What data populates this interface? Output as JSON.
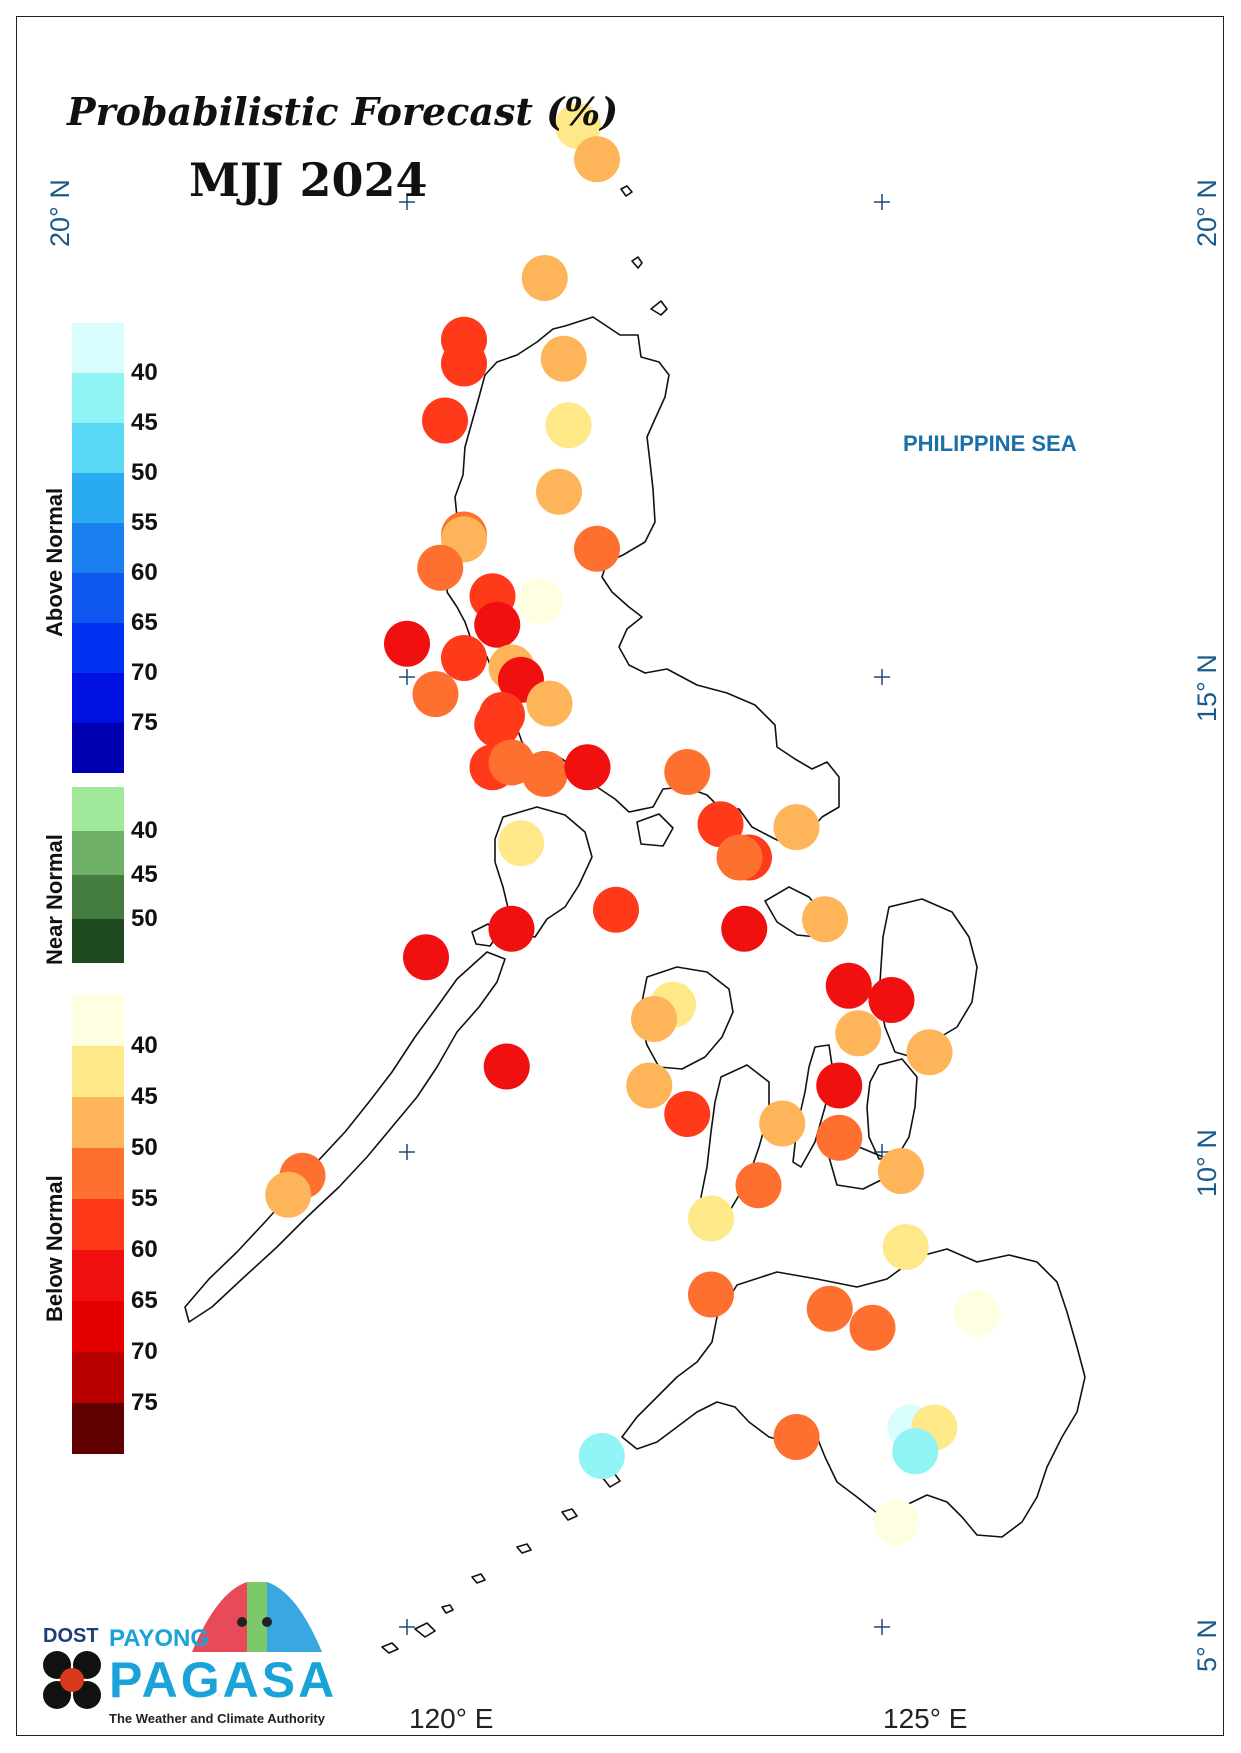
{
  "title": "Probabilistic Forecast (%)",
  "period": "MJJ 2024",
  "sea_label": "PHILIPPINE SEA",
  "latitude_labels": [
    "20° N",
    "15° N",
    "10° N",
    "5° N"
  ],
  "longitude_labels": [
    "120° E",
    "125° E"
  ],
  "legend": {
    "above_normal": {
      "label": "Above Normal",
      "colors": [
        "#d9fcfc",
        "#90f4f4",
        "#58d8f4",
        "#2aaaf0",
        "#1a80f0",
        "#0e58f0",
        "#0030f0",
        "#0010e0",
        "#0000b0"
      ],
      "ticks": [
        "40",
        "45",
        "50",
        "55",
        "60",
        "65",
        "70",
        "75"
      ]
    },
    "near_normal": {
      "label": "Near Normal",
      "colors": [
        "#a0e89a",
        "#6eb068",
        "#447c40",
        "#1f4a20"
      ],
      "ticks": [
        "40",
        "45",
        "50"
      ]
    },
    "below_normal": {
      "label": "Below Normal",
      "colors": [
        "#fefee0",
        "#fee888",
        "#feb458",
        "#fe7030",
        "#fe3a1a",
        "#f01010",
        "#e40000",
        "#b80000",
        "#600000"
      ],
      "ticks": [
        "40",
        "45",
        "50",
        "55",
        "60",
        "65",
        "70",
        "75"
      ]
    }
  },
  "logo": {
    "dost": "DOST",
    "payong": "PAYONG",
    "pagasa": "PAGASA",
    "tagline": "The Weather and Climate Authority"
  },
  "stations": [
    {
      "lon": 121.8,
      "lat": 20.8,
      "color": "#fee888"
    },
    {
      "lon": 122.0,
      "lat": 20.45,
      "color": "#feb458"
    },
    {
      "lon": 121.45,
      "lat": 19.2,
      "color": "#feb458"
    },
    {
      "lon": 120.6,
      "lat": 18.55,
      "color": "#fe3a1a"
    },
    {
      "lon": 120.6,
      "lat": 18.3,
      "color": "#fe3a1a"
    },
    {
      "lon": 121.65,
      "lat": 18.35,
      "color": "#feb458"
    },
    {
      "lon": 120.4,
      "lat": 17.7,
      "color": "#fe3a1a"
    },
    {
      "lon": 121.7,
      "lat": 17.65,
      "color": "#fee888"
    },
    {
      "lon": 121.6,
      "lat": 16.95,
      "color": "#feb458"
    },
    {
      "lon": 120.6,
      "lat": 16.5,
      "color": "#fe7030"
    },
    {
      "lon": 120.6,
      "lat": 16.45,
      "color": "#feb458"
    },
    {
      "lon": 122.0,
      "lat": 16.35,
      "color": "#fe7030"
    },
    {
      "lon": 120.35,
      "lat": 16.15,
      "color": "#fe7030"
    },
    {
      "lon": 120.9,
      "lat": 15.85,
      "color": "#fe3a1a"
    },
    {
      "lon": 121.4,
      "lat": 15.8,
      "color": "#fefee0"
    },
    {
      "lon": 120.95,
      "lat": 15.55,
      "color": "#f01010"
    },
    {
      "lon": 120.0,
      "lat": 15.35,
      "color": "#f01010"
    },
    {
      "lon": 120.6,
      "lat": 15.2,
      "color": "#fe3a1a"
    },
    {
      "lon": 121.1,
      "lat": 15.1,
      "color": "#feb458"
    },
    {
      "lon": 121.2,
      "lat": 14.97,
      "color": "#f01010"
    },
    {
      "lon": 120.3,
      "lat": 14.82,
      "color": "#fe7030"
    },
    {
      "lon": 121.5,
      "lat": 14.72,
      "color": "#feb458"
    },
    {
      "lon": 121.0,
      "lat": 14.6,
      "color": "#fe3a1a"
    },
    {
      "lon": 120.95,
      "lat": 14.5,
      "color": "#fe3a1a"
    },
    {
      "lon": 120.9,
      "lat": 14.05,
      "color": "#fe3a1a"
    },
    {
      "lon": 121.1,
      "lat": 14.1,
      "color": "#fe7030"
    },
    {
      "lon": 121.45,
      "lat": 13.98,
      "color": "#fe7030"
    },
    {
      "lon": 121.9,
      "lat": 14.05,
      "color": "#f01010"
    },
    {
      "lon": 122.95,
      "lat": 14.0,
      "color": "#fe7030"
    },
    {
      "lon": 123.3,
      "lat": 13.45,
      "color": "#fe3a1a"
    },
    {
      "lon": 124.1,
      "lat": 13.42,
      "color": "#feb458"
    },
    {
      "lon": 123.6,
      "lat": 13.1,
      "color": "#fe3a1a"
    },
    {
      "lon": 123.5,
      "lat": 13.1,
      "color": "#fe7030"
    },
    {
      "lon": 121.2,
      "lat": 13.25,
      "color": "#fee888"
    },
    {
      "lon": 122.2,
      "lat": 12.55,
      "color": "#fe3a1a"
    },
    {
      "lon": 124.4,
      "lat": 12.45,
      "color": "#feb458"
    },
    {
      "lon": 121.1,
      "lat": 12.35,
      "color": "#f01010"
    },
    {
      "lon": 123.55,
      "lat": 12.35,
      "color": "#f01010"
    },
    {
      "lon": 120.2,
      "lat": 12.05,
      "color": "#f01010"
    },
    {
      "lon": 124.65,
      "lat": 11.75,
      "color": "#f01010"
    },
    {
      "lon": 125.1,
      "lat": 11.6,
      "color": "#f01010"
    },
    {
      "lon": 122.8,
      "lat": 11.55,
      "color": "#fee888"
    },
    {
      "lon": 122.6,
      "lat": 11.4,
      "color": "#feb458"
    },
    {
      "lon": 124.75,
      "lat": 11.25,
      "color": "#feb458"
    },
    {
      "lon": 125.5,
      "lat": 11.05,
      "color": "#feb458"
    },
    {
      "lon": 121.05,
      "lat": 10.9,
      "color": "#f01010"
    },
    {
      "lon": 122.55,
      "lat": 10.7,
      "color": "#feb458"
    },
    {
      "lon": 124.55,
      "lat": 10.7,
      "color": "#f01010"
    },
    {
      "lon": 122.95,
      "lat": 10.4,
      "color": "#fe3a1a"
    },
    {
      "lon": 123.95,
      "lat": 10.3,
      "color": "#feb458"
    },
    {
      "lon": 124.55,
      "lat": 10.15,
      "color": "#fe7030"
    },
    {
      "lon": 125.2,
      "lat": 9.8,
      "color": "#feb458"
    },
    {
      "lon": 118.9,
      "lat": 9.75,
      "color": "#fe7030"
    },
    {
      "lon": 118.75,
      "lat": 9.55,
      "color": "#feb458"
    },
    {
      "lon": 123.7,
      "lat": 9.65,
      "color": "#fe7030"
    },
    {
      "lon": 123.2,
      "lat": 9.3,
      "color": "#fee888"
    },
    {
      "lon": 125.25,
      "lat": 9.0,
      "color": "#fee888"
    },
    {
      "lon": 123.2,
      "lat": 8.5,
      "color": "#fe7030"
    },
    {
      "lon": 124.45,
      "lat": 8.35,
      "color": "#fe7030"
    },
    {
      "lon": 124.9,
      "lat": 8.15,
      "color": "#fe7030"
    },
    {
      "lon": 126.0,
      "lat": 8.3,
      "color": "#fefee0"
    },
    {
      "lon": 125.3,
      "lat": 7.1,
      "color": "#d9fcfc"
    },
    {
      "lon": 125.55,
      "lat": 7.1,
      "color": "#fee888"
    },
    {
      "lon": 124.1,
      "lat": 7.0,
      "color": "#fe7030"
    },
    {
      "lon": 125.35,
      "lat": 6.85,
      "color": "#90f4f4"
    },
    {
      "lon": 122.05,
      "lat": 6.8,
      "color": "#90f4f4"
    },
    {
      "lon": 125.15,
      "lat": 6.1,
      "color": "#fefee0"
    }
  ]
}
